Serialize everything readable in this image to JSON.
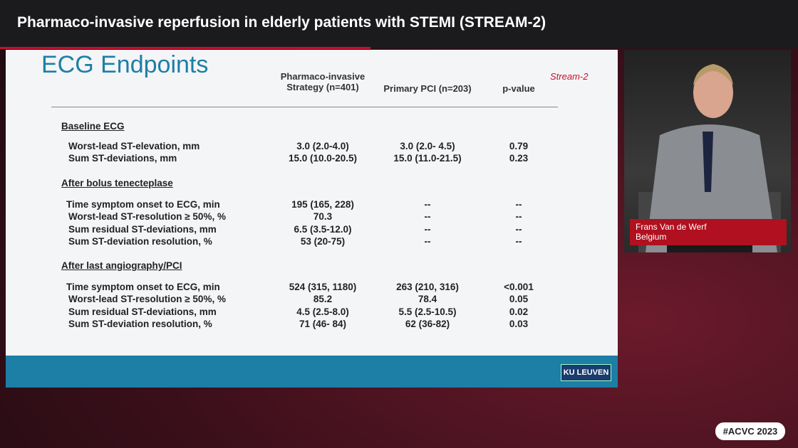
{
  "header": {
    "title": "Pharmaco-invasive reperfusion in elderly patients with STEMI (STREAM-2)"
  },
  "slide": {
    "title": "ECG Endpoints",
    "logo": "Stream-2",
    "columns": [
      "Pharmaco-invasive Strategy (n=401)",
      "Primary PCI (n=203)",
      "p-value"
    ],
    "sections": [
      {
        "title": "Baseline ECG",
        "rows": [
          [
            "Worst-lead ST-elevation, mm",
            "3.0 (2.0-4.0)",
            "3.0 (2.0- 4.5)",
            "0.79"
          ],
          [
            "Sum ST-deviations, mm",
            "15.0 (10.0-20.5)",
            "15.0 (11.0-21.5)",
            "0.23"
          ]
        ]
      },
      {
        "title": "After bolus tenecteplase",
        "rows": [
          [
            "Time symptom onset to ECG, min",
            "195 (165, 228)",
            "--",
            "--"
          ],
          [
            "Worst-lead ST-resolution ≥ 50%, %",
            "70.3",
            "--",
            "--"
          ],
          [
            "Sum residual ST-deviations, mm",
            "6.5 (3.5-12.0)",
            "--",
            "--"
          ],
          [
            "Sum ST-deviation resolution, %",
            "53 (20-75)",
            "--",
            "--"
          ]
        ]
      },
      {
        "title": "After last angiography/PCI",
        "rows": [
          [
            "Time symptom onset to ECG, min",
            "524 (315, 1180)",
            "263 (210, 316)",
            "<0.001"
          ],
          [
            "Worst-lead ST-resolution ≥ 50%, %",
            "85.2",
            "78.4",
            "0.05"
          ],
          [
            "Sum residual ST-deviations, mm",
            "4.5 (2.5-8.0)",
            "5.5 (2.5-10.5)",
            "0.02"
          ],
          [
            "Sum ST-deviation resolution, %",
            "71 (46- 84)",
            "62 (36-82)",
            "0.03"
          ]
        ]
      }
    ],
    "footer": "KU LEUVEN"
  },
  "speaker": {
    "name": "Frans Van de Werf",
    "country": "Belgium"
  },
  "hashtag": "#ACVC 2023"
}
